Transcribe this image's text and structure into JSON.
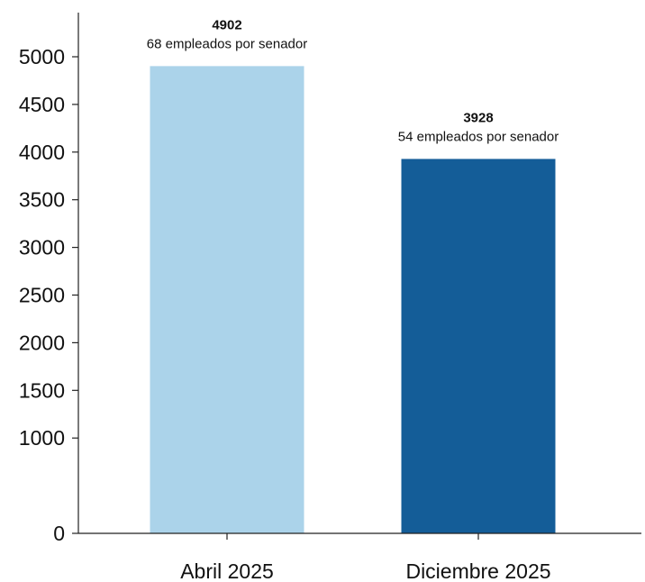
{
  "chart_data": {
    "type": "bar",
    "categories": [
      "Abril 2025",
      "Diciembre 2025"
    ],
    "values": [
      4902,
      3928
    ],
    "annotations": [
      "68 empleados por senador",
      "54 empleados por senador"
    ],
    "bar_colors": [
      "#abd3ea",
      "#145d98"
    ],
    "yticks": [
      0,
      1000,
      1500,
      2000,
      2500,
      3000,
      3500,
      4000,
      4500,
      5000
    ],
    "ylim": [
      0,
      5000
    ],
    "title": "",
    "xlabel": "",
    "ylabel": "",
    "grid": false,
    "legend": false
  }
}
